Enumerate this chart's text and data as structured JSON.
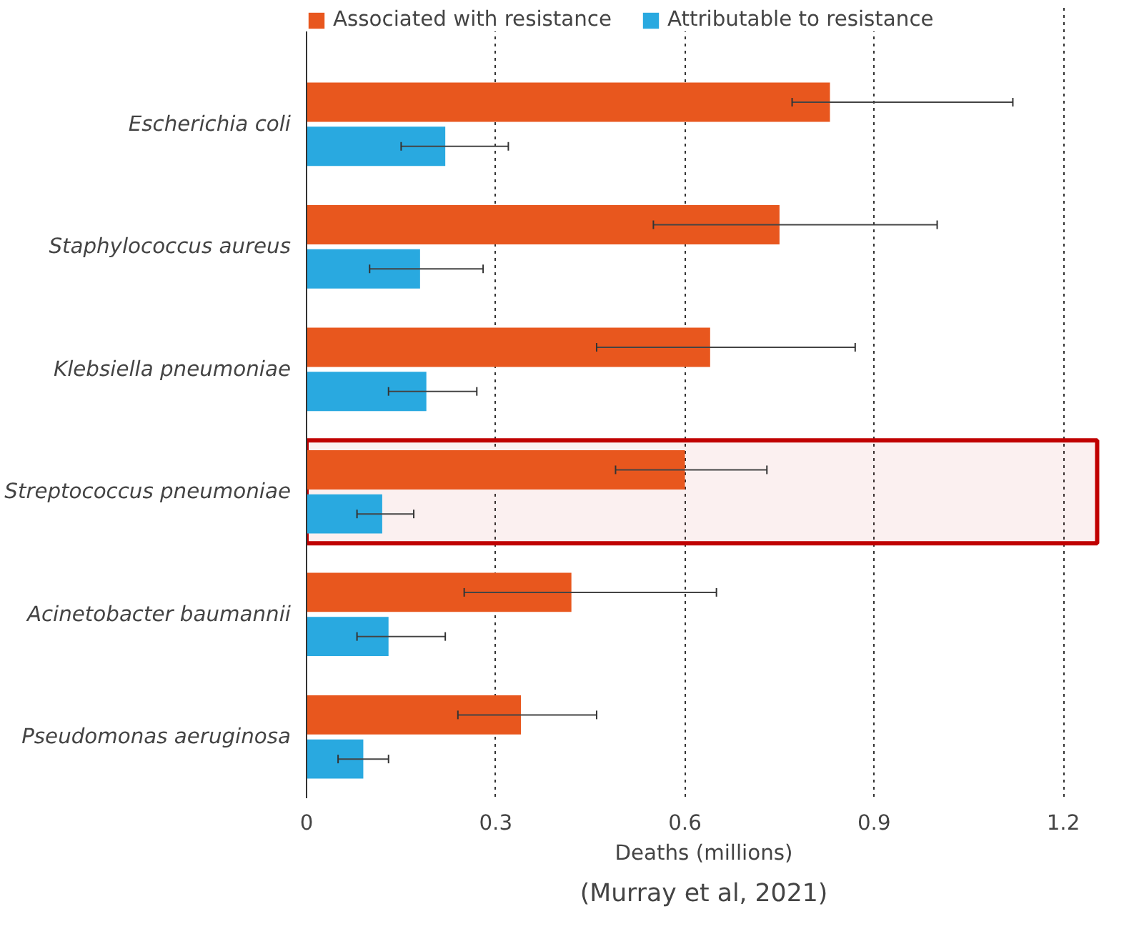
{
  "chart_data": {
    "type": "bar",
    "orientation": "horizontal",
    "xlabel": "Deaths (millions)",
    "categories": [
      "Escherichia coli",
      "Staphylococcus aureus",
      "Klebsiella pneumoniae",
      "Streptococcus pneumoniae",
      "Acinetobacter baumannii",
      "Pseudomonas aeruginosa"
    ],
    "series": [
      {
        "name": "Associated with resistance",
        "color": "#e8571e",
        "values": [
          0.83,
          0.75,
          0.64,
          0.6,
          0.42,
          0.34
        ],
        "errors": [
          [
            0.77,
            1.12
          ],
          [
            0.55,
            1.0
          ],
          [
            0.46,
            0.87
          ],
          [
            0.49,
            0.73
          ],
          [
            0.25,
            0.65
          ],
          [
            0.24,
            0.46
          ]
        ]
      },
      {
        "name": "Attributable to resistance",
        "color": "#29a9e0",
        "values": [
          0.22,
          0.18,
          0.19,
          0.12,
          0.13,
          0.09
        ],
        "errors": [
          [
            0.15,
            0.32
          ],
          [
            0.1,
            0.28
          ],
          [
            0.13,
            0.27
          ],
          [
            0.08,
            0.17
          ],
          [
            0.08,
            0.22
          ],
          [
            0.05,
            0.13
          ]
        ]
      }
    ],
    "xlim": [
      0,
      1.26
    ],
    "xticks": [
      0,
      0.3,
      0.6,
      0.9,
      1.2
    ],
    "grid": "x",
    "legend": "top",
    "bands": [
      {
        "axis": "y",
        "from": "Streptococcus pneumoniae",
        "to": "Streptococcus pneumoniae",
        "color": "#c00000"
      }
    ],
    "annotations": [
      "(Murray et al, 2021)"
    ]
  }
}
